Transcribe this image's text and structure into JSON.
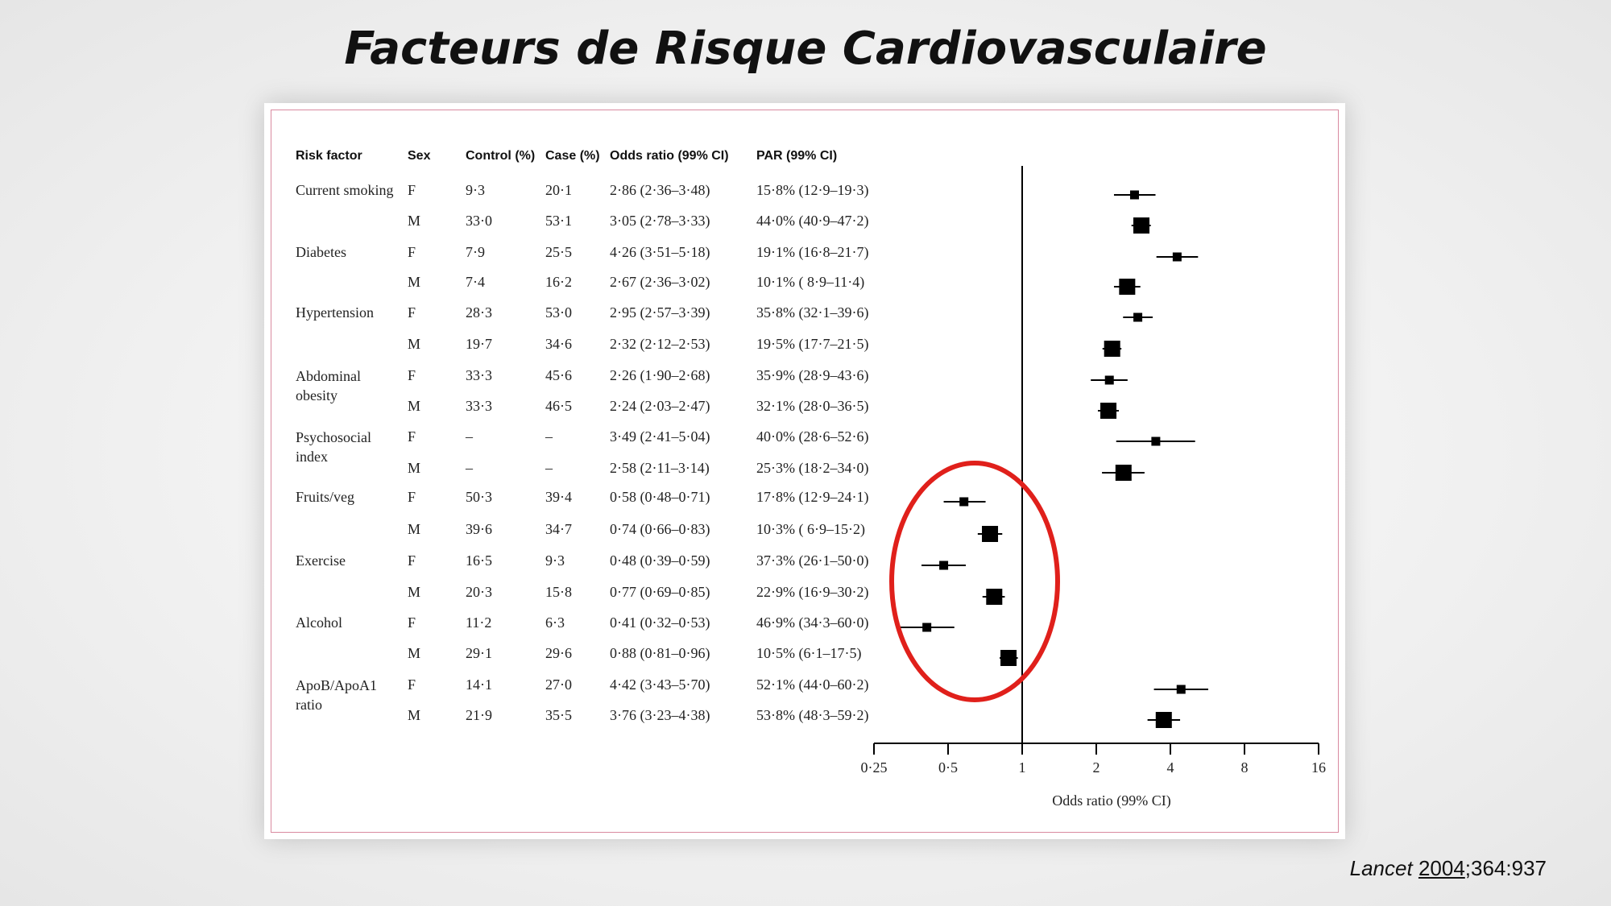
{
  "slide": {
    "title": "Facteurs de Risque Cardiovasculaire",
    "citation": {
      "journal": "Lancet",
      "year": "2004",
      "rest": ";364:937"
    }
  },
  "chart_data": {
    "type": "forest",
    "columns": [
      "Risk factor",
      "Sex",
      "Control (%)",
      "Case (%)",
      "Odds ratio (99% CI)",
      "PAR (99% CI)"
    ],
    "xlabel": "Odds ratio (99% CI)",
    "x_scale": "log2",
    "xlim": [
      0.25,
      16
    ],
    "x_ticks": [
      0.25,
      0.5,
      1,
      2,
      4,
      8,
      16
    ],
    "x_tick_labels": [
      "0·25",
      "0·5",
      "1",
      "2",
      "4",
      "8",
      "16"
    ],
    "reference_line": 1,
    "highlight": {
      "shape": "ellipse",
      "color": "#e0201b",
      "rows": [
        "Fruits/veg",
        "Exercise",
        "Alcohol"
      ]
    },
    "rows": [
      {
        "factor": "Current smoking",
        "sex": "F",
        "control": "9·3",
        "case": "20·1",
        "or_text": "2·86 (2·36–3·48)",
        "par_text": "15·8% (12·9–19·3)",
        "or": 2.86,
        "lo": 2.36,
        "hi": 3.48,
        "marker": "small"
      },
      {
        "factor": "",
        "sex": "M",
        "control": "33·0",
        "case": "53·1",
        "or_text": "3·05 (2·78–3·33)",
        "par_text": "44·0% (40·9–47·2)",
        "or": 3.05,
        "lo": 2.78,
        "hi": 3.33,
        "marker": "large"
      },
      {
        "factor": "Diabetes",
        "sex": "F",
        "control": "7·9",
        "case": "25·5",
        "or_text": "4·26 (3·51–5·18)",
        "par_text": "19·1% (16·8–21·7)",
        "or": 4.26,
        "lo": 3.51,
        "hi": 5.18,
        "marker": "small"
      },
      {
        "factor": "",
        "sex": "M",
        "control": "7·4",
        "case": "16·2",
        "or_text": "2·67 (2·36–3·02)",
        "par_text": "10·1% ( 8·9–11·4)",
        "or": 2.67,
        "lo": 2.36,
        "hi": 3.02,
        "marker": "large"
      },
      {
        "factor": "Hypertension",
        "sex": "F",
        "control": "28·3",
        "case": "53·0",
        "or_text": "2·95 (2·57–3·39)",
        "par_text": "35·8% (32·1–39·6)",
        "or": 2.95,
        "lo": 2.57,
        "hi": 3.39,
        "marker": "small"
      },
      {
        "factor": "",
        "sex": "M",
        "control": "19·7",
        "case": "34·6",
        "or_text": "2·32 (2·12–2·53)",
        "par_text": "19·5% (17·7–21·5)",
        "or": 2.32,
        "lo": 2.12,
        "hi": 2.53,
        "marker": "large"
      },
      {
        "factor": "Abdominal obesity",
        "sex": "F",
        "control": "33·3",
        "case": "45·6",
        "or_text": "2·26 (1·90–2·68)",
        "par_text": "35·9% (28·9–43·6)",
        "or": 2.26,
        "lo": 1.9,
        "hi": 2.68,
        "marker": "small"
      },
      {
        "factor": "",
        "sex": "M",
        "control": "33·3",
        "case": "46·5",
        "or_text": "2·24 (2·03–2·47)",
        "par_text": "32·1% (28·0–36·5)",
        "or": 2.24,
        "lo": 2.03,
        "hi": 2.47,
        "marker": "large"
      },
      {
        "factor": "Psychosocial index",
        "sex": "F",
        "control": "–",
        "case": "–",
        "or_text": "3·49 (2·41–5·04)",
        "par_text": "40·0% (28·6–52·6)",
        "or": 3.49,
        "lo": 2.41,
        "hi": 5.04,
        "marker": "small"
      },
      {
        "factor": "",
        "sex": "M",
        "control": "–",
        "case": "–",
        "or_text": "2·58 (2·11–3·14)",
        "par_text": "25·3% (18·2–34·0)",
        "or": 2.58,
        "lo": 2.11,
        "hi": 3.14,
        "marker": "large"
      },
      {
        "factor": "Fruits/veg",
        "sex": "F",
        "control": "50·3",
        "case": "39·4",
        "or_text": "0·58 (0·48–0·71)",
        "par_text": "17·8% (12·9–24·1)",
        "or": 0.58,
        "lo": 0.48,
        "hi": 0.71,
        "marker": "small"
      },
      {
        "factor": "",
        "sex": "M",
        "control": "39·6",
        "case": "34·7",
        "or_text": "0·74 (0·66–0·83)",
        "par_text": "10·3% ( 6·9–15·2)",
        "or": 0.74,
        "lo": 0.66,
        "hi": 0.83,
        "marker": "large"
      },
      {
        "factor": "Exercise",
        "sex": "F",
        "control": "16·5",
        "case": "9·3",
        "or_text": "0·48 (0·39–0·59)",
        "par_text": "37·3% (26·1–50·0)",
        "or": 0.48,
        "lo": 0.39,
        "hi": 0.59,
        "marker": "small"
      },
      {
        "factor": "",
        "sex": "M",
        "control": "20·3",
        "case": "15·8",
        "or_text": "0·77 (0·69–0·85)",
        "par_text": "22·9% (16·9–30·2)",
        "or": 0.77,
        "lo": 0.69,
        "hi": 0.85,
        "marker": "large"
      },
      {
        "factor": "Alcohol",
        "sex": "F",
        "control": "11·2",
        "case": "6·3",
        "or_text": "0·41 (0·32–0·53)",
        "par_text": "46·9% (34·3–60·0)",
        "or": 0.41,
        "lo": 0.32,
        "hi": 0.53,
        "marker": "small"
      },
      {
        "factor": "",
        "sex": "M",
        "control": "29·1",
        "case": "29·6",
        "or_text": "0·88 (0·81–0·96)",
        "par_text": "10·5% (6·1–17·5)",
        "or": 0.88,
        "lo": 0.81,
        "hi": 0.96,
        "marker": "large"
      },
      {
        "factor": "ApoB/ApoA1 ratio",
        "sex": "F",
        "control": "14·1",
        "case": "27·0",
        "or_text": "4·42 (3·43–5·70)",
        "par_text": "52·1% (44·0–60·2)",
        "or": 4.42,
        "lo": 3.43,
        "hi": 5.7,
        "marker": "small"
      },
      {
        "factor": "",
        "sex": "M",
        "control": "21·9",
        "case": "35·5",
        "or_text": "3·76 (3·23–4·38)",
        "par_text": "53·8% (48·3–59·2)",
        "or": 3.76,
        "lo": 3.23,
        "hi": 4.38,
        "marker": "large"
      }
    ]
  }
}
